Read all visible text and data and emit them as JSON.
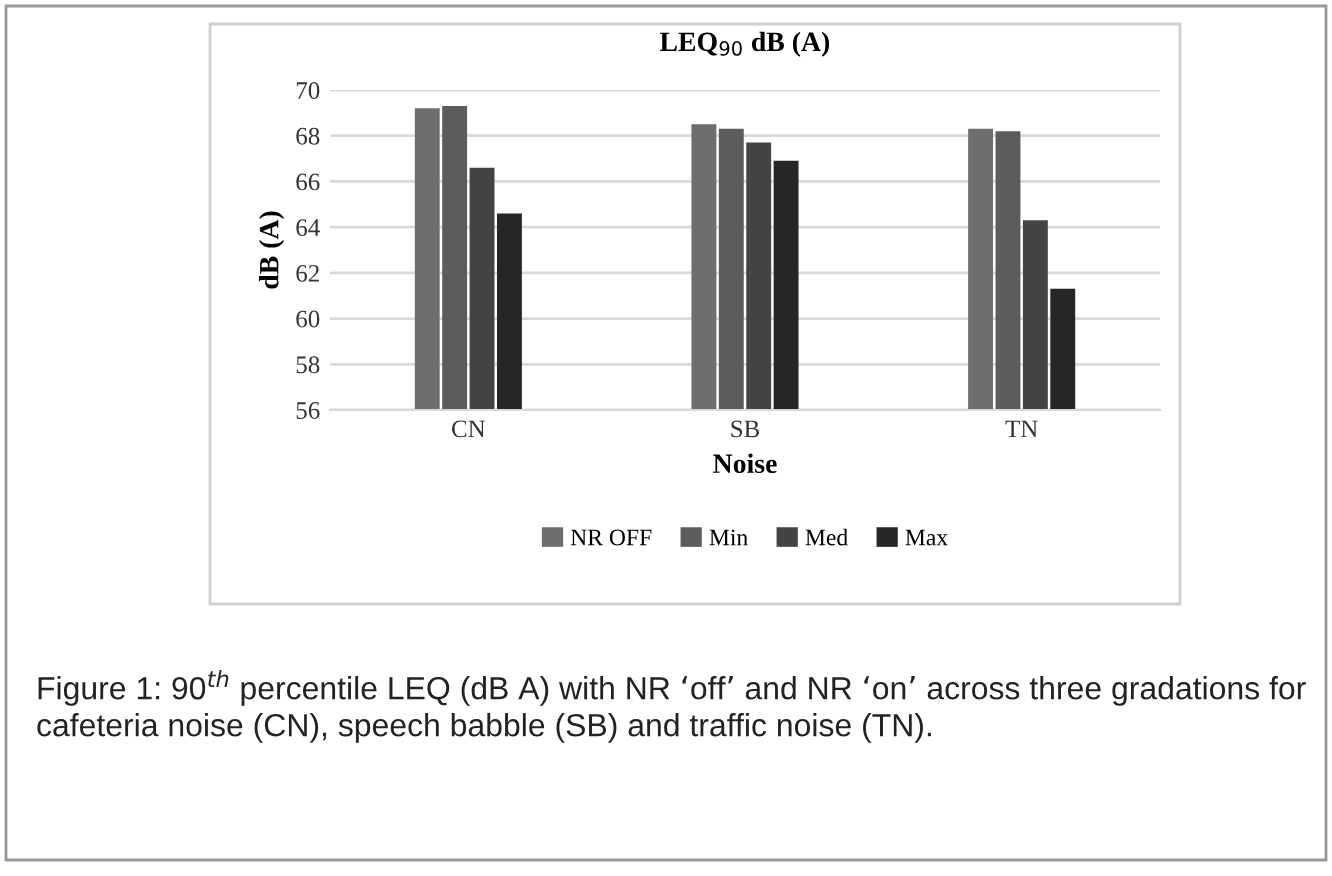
{
  "chart_data": {
    "type": "bar",
    "title": "LEQ$_{90}$ dB (A)",
    "xlabel": "Noise",
    "ylabel": "dB (A)",
    "categories": [
      "CN",
      "SB",
      "TN"
    ],
    "series": [
      {
        "name": "NR OFF",
        "color": "#6e6e6e",
        "values": [
          69.2,
          68.5,
          68.3
        ]
      },
      {
        "name": "Min",
        "color": "#5c5c5c",
        "values": [
          69.3,
          68.3,
          68.2
        ]
      },
      {
        "name": "Med",
        "color": "#444444",
        "values": [
          66.6,
          67.7,
          64.3
        ]
      },
      {
        "name": "Max",
        "color": "#262626",
        "values": [
          64.6,
          66.9,
          61.3
        ]
      }
    ],
    "ylim": [
      56,
      70
    ],
    "yticks": [
      56,
      58,
      60,
      62,
      64,
      66,
      68,
      70
    ],
    "grid": "y",
    "legend": "bottom",
    "annotations": [
      "Figure 1: 90$^{th}$ percentile LEQ (dB A) with NR ‘off’ and NR ‘on’ across three gradations for cafeteria noise (CN), speech babble (SB) and traffic noise (TN)."
    ]
  }
}
